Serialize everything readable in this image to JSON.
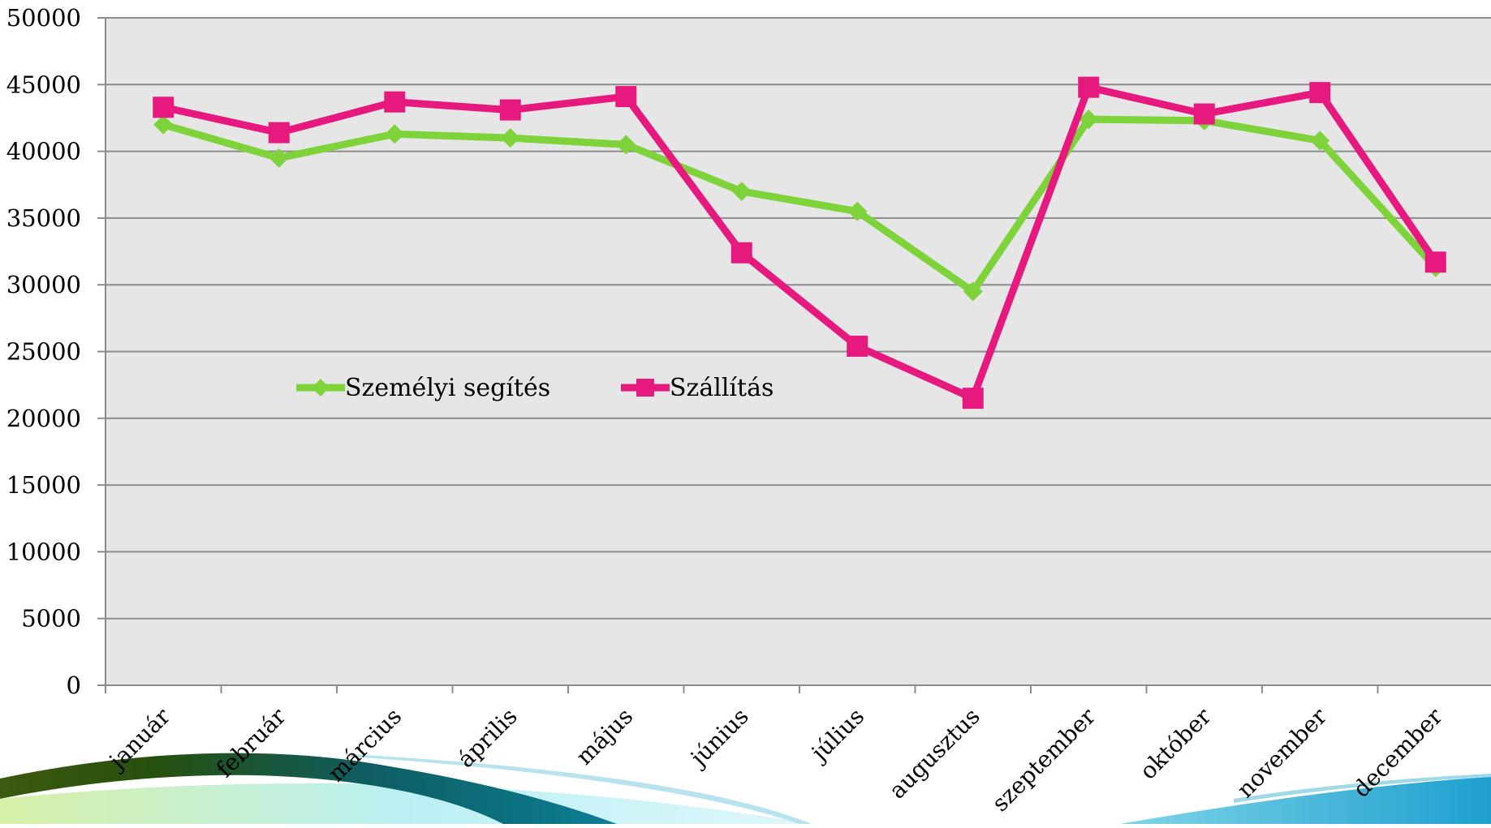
{
  "chart_data": {
    "type": "line",
    "categories": [
      "január",
      "február",
      "március",
      "április",
      "május",
      "június",
      "július",
      "augusztus",
      "szeptember",
      "október",
      "november",
      "december"
    ],
    "series": [
      {
        "name": "Személyi segítés",
        "color": "#7ed23a",
        "marker": "diamond",
        "values": [
          42000,
          39500,
          41300,
          41000,
          40500,
          37000,
          35500,
          29500,
          42400,
          42300,
          40800,
          31300
        ]
      },
      {
        "name": "Szállítás",
        "color": "#e6197f",
        "marker": "square",
        "values": [
          43300,
          41400,
          43700,
          43100,
          44100,
          32400,
          25400,
          21500,
          44800,
          42800,
          44400,
          31700
        ]
      }
    ],
    "ylim": [
      0,
      50000
    ],
    "yticks": [
      "0",
      "5000",
      "10000",
      "15000",
      "20000",
      "25000",
      "30000",
      "35000",
      "40000",
      "45000",
      "50000"
    ],
    "grid": true,
    "legend_position": "inside-middle-left",
    "plot_background": "#e6e6e6",
    "gridline_color": "#8c8c8c"
  }
}
